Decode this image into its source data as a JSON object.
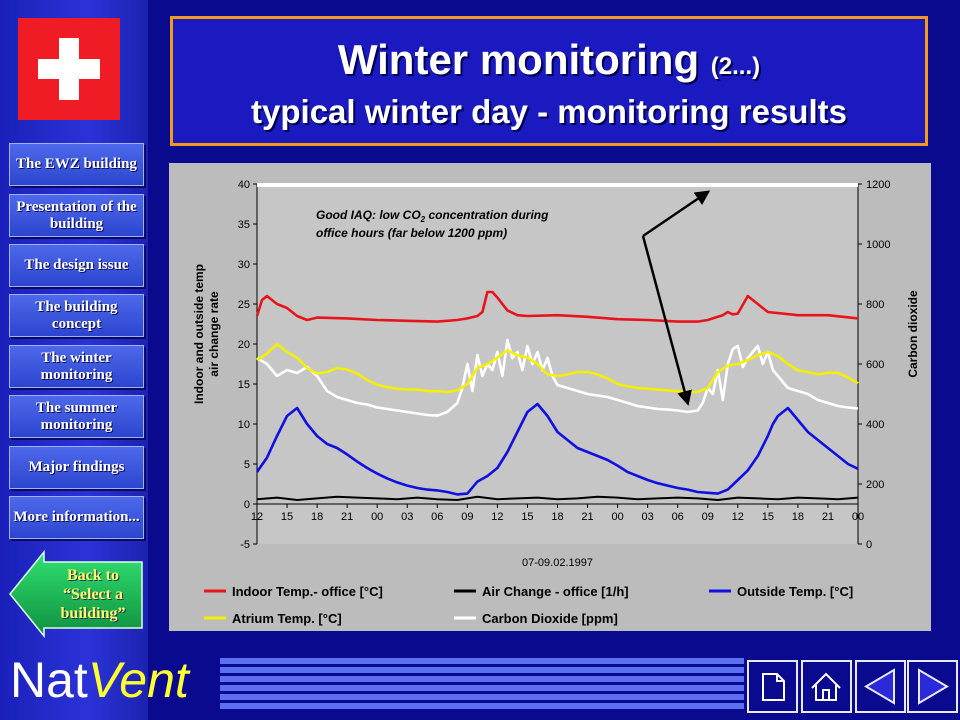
{
  "nav": {
    "items": [
      {
        "label": "The EWZ building"
      },
      {
        "label": "Presentation of the building"
      },
      {
        "label": "The design issue"
      },
      {
        "label": "The building concept"
      },
      {
        "label": "The winter monitoring"
      },
      {
        "label": "The summer monitoring"
      },
      {
        "label": "Major findings"
      },
      {
        "label": "More information..."
      }
    ],
    "back_label": "Back to “Select a building”"
  },
  "logo": {
    "part1": "Nat",
    "part2": "Vent"
  },
  "title": {
    "main": "Winter monitoring",
    "suffix": "(2...)",
    "subtitle": "typical winter day - monitoring results"
  },
  "icons": [
    "page-icon",
    "home-icon",
    "previous-icon",
    "next-icon"
  ],
  "colors": {
    "background": "#0a0a8e",
    "title_border": "#f39a1e",
    "chart_bg": "#bcbcbc"
  },
  "chart_data": {
    "type": "line",
    "xlabel": "07-09.02.1997",
    "ylabel_left": "Indoor and outside temp air change rate",
    "ylabel_right": "Carbon dioxide",
    "ylim_left": [
      -5,
      40
    ],
    "ylim_right": [
      0,
      1200
    ],
    "left_ticks": [
      "-5",
      "0",
      "5",
      "10",
      "15",
      "20",
      "25",
      "30",
      "35",
      "40"
    ],
    "right_ticks": [
      "0",
      "200",
      "400",
      "600",
      "800",
      "1000",
      "1200"
    ],
    "x_ticks": [
      "12",
      "15",
      "18",
      "21",
      "00",
      "03",
      "06",
      "09",
      "12",
      "15",
      "18",
      "21",
      "00",
      "03",
      "06",
      "09",
      "12",
      "15",
      "18",
      "21",
      "00"
    ],
    "x_hours": [
      12,
      15,
      18,
      21,
      24,
      27,
      30,
      33,
      36,
      39,
      42,
      45,
      48,
      51,
      54,
      57,
      60,
      63,
      66,
      69,
      72
    ],
    "annotation": {
      "line1": "Good IAQ: low CO",
      "sub": "2",
      "line1b": " concentration during",
      "line2": "office hours (far below 1200 ppm)"
    },
    "limit_line_ppm": 1200,
    "series": [
      {
        "name": "Indoor Temp.- office [°C]",
        "axis": "left",
        "color": "#e8141b",
        "x": [
          12,
          12.5,
          13,
          14,
          15,
          16,
          17,
          18,
          21,
          24,
          27,
          30,
          32,
          33,
          34,
          34.5,
          35,
          35.5,
          36,
          37,
          38,
          39,
          42,
          45,
          48,
          51,
          54,
          56,
          57,
          58,
          58.5,
          59,
          59.5,
          60,
          61,
          62,
          63,
          66,
          69,
          72
        ],
        "y": [
          23.5,
          25.5,
          26,
          25,
          24.5,
          23.5,
          23,
          23.3,
          23.2,
          23,
          22.9,
          22.8,
          23,
          23.2,
          23.5,
          24,
          26.5,
          26.5,
          25.8,
          24.2,
          23.6,
          23.5,
          23.6,
          23.4,
          23.1,
          23,
          22.8,
          22.8,
          23,
          23.4,
          23.6,
          24,
          23.7,
          23.8,
          26,
          25,
          24,
          23.6,
          23.6,
          23.2
        ]
      },
      {
        "name": "Air Change - office [1/h]",
        "axis": "left",
        "color": "#000000",
        "x": [
          12,
          14,
          16,
          18,
          20,
          22,
          24,
          26,
          28,
          30,
          32,
          34,
          36,
          38,
          40,
          42,
          44,
          46,
          48,
          50,
          52,
          54,
          56,
          58,
          60,
          62,
          64,
          66,
          68,
          70,
          72
        ],
        "y": [
          0.6,
          0.8,
          0.5,
          0.7,
          0.9,
          0.8,
          0.7,
          0.6,
          0.8,
          0.6,
          0.5,
          0.9,
          0.6,
          0.7,
          0.8,
          0.6,
          0.7,
          0.9,
          0.8,
          0.6,
          0.7,
          0.8,
          0.7,
          0.5,
          0.8,
          0.7,
          0.6,
          0.8,
          0.7,
          0.6,
          0.8
        ]
      },
      {
        "name": "Outside Temp. [°C]",
        "axis": "left",
        "color": "#1010e0",
        "x": [
          12,
          13,
          14,
          15,
          16,
          17,
          18,
          19,
          20,
          21,
          22,
          23,
          24,
          25,
          26,
          27,
          28,
          29,
          30,
          31,
          32,
          33,
          34,
          35,
          36,
          36.5,
          37,
          38,
          39,
          40,
          41,
          42,
          43,
          44,
          45,
          46,
          47,
          48,
          49,
          50,
          51,
          52,
          53,
          54,
          55,
          56,
          57,
          58,
          59,
          60,
          61,
          62,
          63,
          63.5,
          64,
          65,
          66,
          67,
          68,
          69,
          70,
          71,
          72
        ],
        "y": [
          4,
          5.8,
          8.5,
          11,
          12,
          10,
          8.5,
          7.5,
          7,
          6.2,
          5.3,
          4.5,
          3.8,
          3.2,
          2.7,
          2.3,
          2,
          1.8,
          1.7,
          1.5,
          1.2,
          1.3,
          2.8,
          3.5,
          4.5,
          5.5,
          6.5,
          9,
          11.5,
          12.5,
          11,
          9,
          8,
          7,
          6.5,
          6,
          5.5,
          4.8,
          4,
          3.5,
          3,
          2.6,
          2.3,
          2,
          1.8,
          1.5,
          1.4,
          1.3,
          1.8,
          3,
          4.2,
          6,
          8.5,
          10,
          11,
          12,
          10.5,
          9,
          8,
          7,
          6,
          5,
          4.4
        ]
      },
      {
        "name": "Atrium Temp. [°C]",
        "axis": "left",
        "color": "#f4f000",
        "x": [
          12,
          13,
          14,
          15,
          16,
          17,
          18,
          19,
          20,
          21,
          22,
          23,
          24,
          25,
          26,
          27,
          28,
          29,
          30,
          31,
          32,
          33,
          34,
          35,
          36,
          37,
          38,
          39,
          40,
          41,
          42,
          43,
          44,
          45,
          46,
          47,
          48,
          49,
          50,
          51,
          52,
          53,
          54,
          55,
          56,
          57,
          58,
          59,
          60,
          61,
          62,
          63,
          64,
          65,
          66,
          67,
          68,
          69,
          70,
          71,
          72
        ],
        "y": [
          18,
          18.8,
          20,
          19,
          18.3,
          17,
          16.3,
          16.5,
          17,
          16.8,
          16.3,
          15.5,
          14.9,
          14.6,
          14.4,
          14.3,
          14.3,
          14.1,
          14.1,
          14,
          14.2,
          15,
          17,
          17.5,
          18.3,
          19.2,
          18.6,
          18.3,
          17.5,
          16.2,
          16,
          16.2,
          16.5,
          16.5,
          16.2,
          15.7,
          15,
          14.7,
          14.5,
          14.4,
          14.3,
          14.2,
          14.1,
          14,
          14,
          14.5,
          16.5,
          17.3,
          17.5,
          18,
          18.6,
          19,
          18.5,
          17.5,
          16.7,
          16.5,
          16.2,
          16.4,
          16.4,
          15.8,
          15.1
        ]
      },
      {
        "name": "Carbon Dioxide [ppm]",
        "axis": "right",
        "color": "#ffffff",
        "x": [
          12,
          13,
          14,
          15,
          16,
          17,
          18,
          19,
          20,
          21,
          22,
          23,
          24,
          25,
          26,
          27,
          28,
          29,
          30,
          31,
          32,
          32.5,
          33,
          33.5,
          34,
          34.5,
          35,
          35.5,
          36,
          36.5,
          37,
          37.5,
          38,
          38.5,
          39,
          39.5,
          40,
          40.5,
          41,
          41.5,
          42,
          43,
          44,
          45,
          46,
          47,
          48,
          49,
          50,
          51,
          52,
          53,
          54,
          55,
          56,
          56.5,
          57,
          57.5,
          58,
          58.5,
          59,
          59.5,
          60,
          60.5,
          61,
          61.5,
          62,
          62.5,
          63,
          63.5,
          64,
          64.5,
          65,
          66,
          67,
          68,
          69,
          70,
          71,
          72
        ],
        "y": [
          620,
          600,
          560,
          580,
          570,
          590,
          560,
          510,
          490,
          480,
          470,
          465,
          455,
          450,
          445,
          440,
          435,
          430,
          428,
          440,
          470,
          520,
          600,
          510,
          630,
          560,
          600,
          580,
          640,
          560,
          680,
          620,
          640,
          580,
          660,
          600,
          640,
          580,
          620,
          560,
          530,
          520,
          510,
          500,
          495,
          490,
          480,
          470,
          460,
          455,
          450,
          448,
          445,
          440,
          445,
          470,
          520,
          500,
          580,
          480,
          600,
          650,
          660,
          590,
          620,
          640,
          660,
          600,
          640,
          580,
          560,
          540,
          520,
          510,
          500,
          480,
          470,
          460,
          455,
          452
        ]
      }
    ]
  }
}
